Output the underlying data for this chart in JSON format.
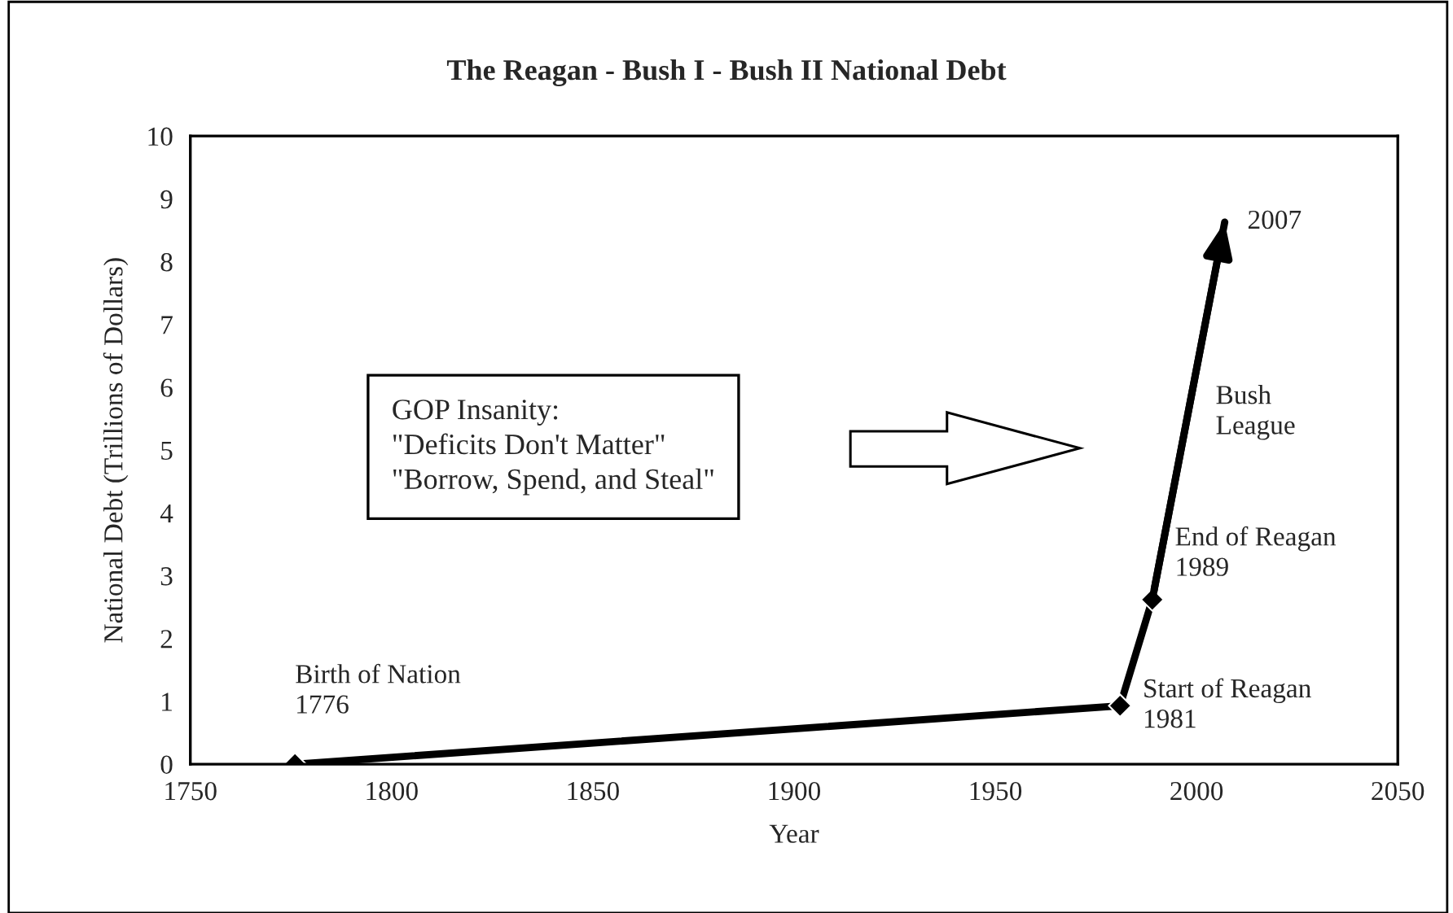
{
  "chart_data": {
    "type": "line",
    "title": "The Reagan - Bush I - Bush II National Debt",
    "xlabel": "Year",
    "ylabel": "National Debt (Trillions of Dollars)",
    "x": [
      1776,
      1981,
      1989,
      2007
    ],
    "series": [
      {
        "color": "#000000",
        "values": [
          0,
          0.93,
          2.62,
          8.63
        ]
      }
    ],
    "xlim": [
      1750,
      2050
    ],
    "xticks": [
      1750,
      1800,
      1850,
      1900,
      1950,
      2000,
      2050
    ],
    "ylim": [
      0,
      10
    ],
    "yticks": [
      0,
      1,
      2,
      3,
      4,
      5,
      6,
      7,
      8,
      9,
      10
    ],
    "marker": "diamond",
    "line_style": "solid",
    "grid": false,
    "legend": false,
    "annotations": [
      {
        "text": "Birth of Nation\n1776",
        "x": 1776,
        "y": 0
      },
      {
        "text": "Start of Reagan\n1981",
        "x": 1981,
        "y": 0.93
      },
      {
        "text": "End of Reagan\n1989",
        "x": 1989,
        "y": 2.62
      },
      {
        "text": "Bush\nLeague",
        "x": 1998,
        "y": 5.6
      },
      {
        "text": "2007",
        "x": 2007,
        "y": 8.63
      },
      "GOP Insanity:\n\"Deficits Don't Matter\"\n\"Borrow, Spend, and Steal\""
    ]
  }
}
